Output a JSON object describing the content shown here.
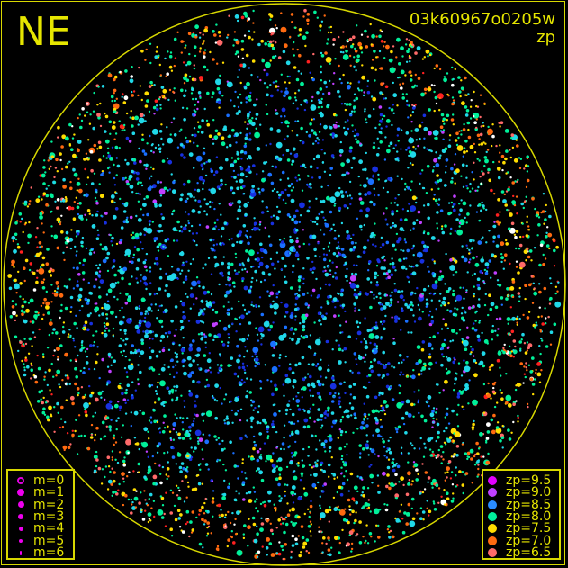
{
  "header": {
    "direction": "NE",
    "frame_id": "03k60967o0205w",
    "quantity": "zp"
  },
  "colors": {
    "frame": "#d8d800",
    "background": "#000000",
    "saturated_star": "#ffffff"
  },
  "chart_data": {
    "type": "scatter",
    "title": "",
    "encoding": {
      "color": "zp",
      "size": "m"
    },
    "magnitude_legend": [
      {
        "label": "m=0",
        "m": 0,
        "symbol": "open-circle"
      },
      {
        "label": "m=1",
        "m": 1
      },
      {
        "label": "m=2",
        "m": 2
      },
      {
        "label": "m=3",
        "m": 3
      },
      {
        "label": "m=4",
        "m": 4
      },
      {
        "label": "m=5",
        "m": 5
      },
      {
        "label": "m=6",
        "m": 6
      }
    ],
    "zp_legend": [
      {
        "label": "zp=9.5",
        "zp": 9.5,
        "color": "#e000ff"
      },
      {
        "label": "zp=9.0",
        "zp": 9.0,
        "color": "#c040ff"
      },
      {
        "label": "zp=8.5",
        "zp": 8.5,
        "color": "#2a8cff"
      },
      {
        "label": "zp=8.0",
        "zp": 8.0,
        "color": "#00f09a"
      },
      {
        "label": "zp=7.5",
        "zp": 7.5,
        "color": "#ffdd00"
      },
      {
        "label": "zp=7.0",
        "zp": 7.0,
        "color": "#ff6a10"
      },
      {
        "label": "zp=6.5",
        "zp": 6.5,
        "color": "#ff6a6a"
      }
    ]
  }
}
